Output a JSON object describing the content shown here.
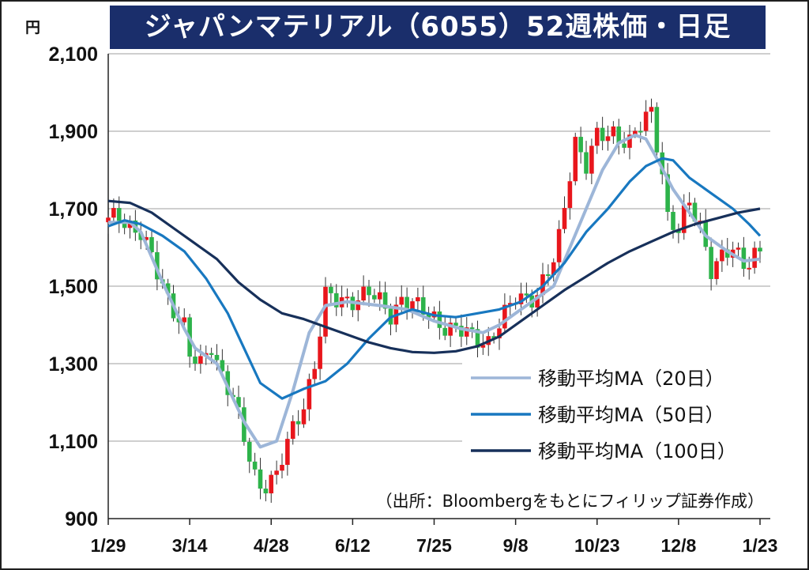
{
  "title": "ジャパンマテリアル（6055）52週株価・日足",
  "unit": "円",
  "source": "（出所：Bloombergをもとにフィリップ証券作成）",
  "colors": {
    "title_bg": "#1a2e6b",
    "up_candle": "#e8161c",
    "down_candle": "#2db34a",
    "ma20": "#9db6d8",
    "ma50": "#1878c0",
    "ma100": "#17305a",
    "grid": "#bfbfbf"
  },
  "chart_data": {
    "type": "line",
    "subtype": "candlestick-with-moving-averages",
    "y_ticks": [
      "900",
      "1,100",
      "1,300",
      "1,500",
      "1,700",
      "1,900",
      "2,100"
    ],
    "ylim": [
      900,
      2100
    ],
    "x_ticks": [
      "1/29",
      "3/14",
      "4/28",
      "6/12",
      "7/25",
      "9/8",
      "10/23",
      "12/8",
      "1/23"
    ],
    "grid": "horizontal",
    "legend_position": "lower-right",
    "candle_anchors": [
      [
        0,
        1665
      ],
      [
        2,
        1680
      ],
      [
        6,
        1640
      ],
      [
        9,
        1530
      ],
      [
        11,
        1470
      ],
      [
        14,
        1400
      ],
      [
        15,
        1320
      ],
      [
        17,
        1290
      ],
      [
        19,
        1350
      ],
      [
        20,
        1310
      ],
      [
        23,
        1210
      ],
      [
        25,
        1100
      ],
      [
        27,
        1010
      ],
      [
        28,
        990
      ],
      [
        31,
        1010
      ],
      [
        33,
        1090
      ],
      [
        36,
        1200
      ],
      [
        38,
        1300
      ],
      [
        40,
        1470
      ],
      [
        42,
        1460
      ],
      [
        45,
        1470
      ],
      [
        48,
        1480
      ],
      [
        52,
        1430
      ],
      [
        54,
        1470
      ],
      [
        57,
        1440
      ],
      [
        60,
        1420
      ],
      [
        63,
        1390
      ],
      [
        67,
        1370
      ],
      [
        70,
        1360
      ],
      [
        73,
        1420
      ],
      [
        75,
        1470
      ],
      [
        79,
        1480
      ],
      [
        82,
        1560
      ],
      [
        83,
        1620
      ],
      [
        85,
        1800
      ],
      [
        86,
        1880
      ],
      [
        88,
        1810
      ],
      [
        90,
        1880
      ],
      [
        93,
        1900
      ],
      [
        96,
        1870
      ],
      [
        98,
        1910
      ],
      [
        100,
        1950
      ],
      [
        102,
        1800
      ],
      [
        103,
        1680
      ],
      [
        105,
        1640
      ],
      [
        107,
        1710
      ],
      [
        109,
        1660
      ],
      [
        111,
        1550
      ],
      [
        113,
        1570
      ],
      [
        115,
        1590
      ],
      [
        117,
        1560
      ],
      [
        119,
        1590
      ]
    ],
    "series": [
      {
        "name": "移動平均MA（20日）",
        "points": [
          [
            0,
            1665
          ],
          [
            4,
            1665
          ],
          [
            6,
            1640
          ],
          [
            10,
            1510
          ],
          [
            14,
            1390
          ],
          [
            16,
            1340
          ],
          [
            20,
            1300
          ],
          [
            25,
            1150
          ],
          [
            28,
            1085
          ],
          [
            31,
            1100
          ],
          [
            34,
            1230
          ],
          [
            37,
            1380
          ],
          [
            40,
            1450
          ],
          [
            44,
            1460
          ],
          [
            50,
            1450
          ],
          [
            55,
            1440
          ],
          [
            60,
            1410
          ],
          [
            65,
            1390
          ],
          [
            69,
            1380
          ],
          [
            72,
            1400
          ],
          [
            75,
            1430
          ],
          [
            79,
            1470
          ],
          [
            82,
            1500
          ],
          [
            85,
            1600
          ],
          [
            88,
            1700
          ],
          [
            91,
            1800
          ],
          [
            94,
            1870
          ],
          [
            97,
            1890
          ],
          [
            99,
            1880
          ],
          [
            101,
            1830
          ],
          [
            104,
            1750
          ],
          [
            107,
            1690
          ],
          [
            110,
            1630
          ],
          [
            114,
            1590
          ],
          [
            117,
            1565
          ],
          [
            120,
            1570
          ]
        ]
      },
      {
        "name": "移動平均MA（50日）",
        "points": [
          [
            0,
            1655
          ],
          [
            3,
            1670
          ],
          [
            6,
            1660
          ],
          [
            10,
            1630
          ],
          [
            14,
            1590
          ],
          [
            18,
            1520
          ],
          [
            22,
            1430
          ],
          [
            25,
            1340
          ],
          [
            28,
            1250
          ],
          [
            32,
            1210
          ],
          [
            36,
            1235
          ],
          [
            40,
            1255
          ],
          [
            44,
            1300
          ],
          [
            48,
            1365
          ],
          [
            52,
            1420
          ],
          [
            56,
            1440
          ],
          [
            60,
            1425
          ],
          [
            64,
            1420
          ],
          [
            68,
            1430
          ],
          [
            72,
            1440
          ],
          [
            76,
            1460
          ],
          [
            80,
            1500
          ],
          [
            84,
            1560
          ],
          [
            88,
            1640
          ],
          [
            92,
            1700
          ],
          [
            96,
            1770
          ],
          [
            99,
            1810
          ],
          [
            102,
            1830
          ],
          [
            104,
            1825
          ],
          [
            107,
            1780
          ],
          [
            111,
            1740
          ],
          [
            115,
            1700
          ],
          [
            118,
            1660
          ],
          [
            120,
            1630
          ]
        ]
      },
      {
        "name": "移動平均MA（100日）",
        "points": [
          [
            0,
            1720
          ],
          [
            4,
            1715
          ],
          [
            8,
            1690
          ],
          [
            12,
            1650
          ],
          [
            16,
            1610
          ],
          [
            20,
            1570
          ],
          [
            24,
            1510
          ],
          [
            28,
            1465
          ],
          [
            32,
            1430
          ],
          [
            36,
            1415
          ],
          [
            40,
            1395
          ],
          [
            44,
            1375
          ],
          [
            48,
            1355
          ],
          [
            52,
            1340
          ],
          [
            56,
            1330
          ],
          [
            60,
            1328
          ],
          [
            64,
            1332
          ],
          [
            68,
            1345
          ],
          [
            72,
            1370
          ],
          [
            76,
            1410
          ],
          [
            80,
            1450
          ],
          [
            84,
            1490
          ],
          [
            88,
            1525
          ],
          [
            92,
            1560
          ],
          [
            96,
            1590
          ],
          [
            100,
            1615
          ],
          [
            104,
            1640
          ],
          [
            108,
            1660
          ],
          [
            112,
            1675
          ],
          [
            116,
            1690
          ],
          [
            120,
            1700
          ]
        ]
      }
    ]
  }
}
